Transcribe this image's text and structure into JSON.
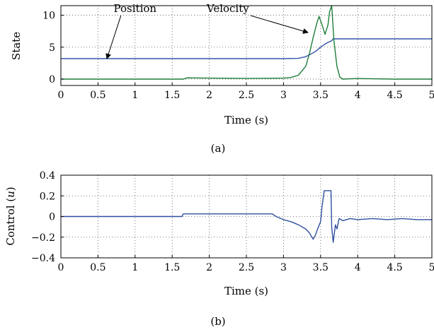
{
  "chart_data": [
    {
      "type": "line",
      "caption": "(a)",
      "xlabel": "Time (s)",
      "ylabel": "State",
      "xlim": [
        0,
        5
      ],
      "ylim": [
        -1,
        11.5
      ],
      "xticks": [
        "0",
        "0.5",
        "1",
        "1.5",
        "2",
        "2.5",
        "3",
        "3.5",
        "4",
        "4.5",
        "5"
      ],
      "yticks": [
        "0",
        "5",
        "10"
      ],
      "grid": true,
      "annotations": [
        {
          "text": "Position",
          "x": 1.0,
          "y": 10.5,
          "target_x": 0.62,
          "target_y": 3.2
        },
        {
          "text": "Velocity",
          "x": 2.25,
          "y": 10.5,
          "target_x": 3.33,
          "target_y": 7.3
        }
      ],
      "series": [
        {
          "color": "#3355aa",
          "x": [
            0,
            0.5,
            1,
            1.5,
            2,
            2.5,
            3,
            3.2,
            3.3,
            3.4,
            3.45,
            3.5,
            3.55,
            3.6,
            3.65,
            3.67,
            3.7,
            4,
            4.5,
            5
          ],
          "y": [
            3.2,
            3.2,
            3.2,
            3.2,
            3.2,
            3.2,
            3.2,
            3.25,
            3.5,
            4.1,
            4.5,
            5.0,
            5.4,
            5.75,
            6.0,
            6.3,
            6.3,
            6.3,
            6.3,
            6.3
          ]
        },
        {
          "color": "#1f7f3a",
          "x": [
            0,
            0.5,
            1,
            1.5,
            1.65,
            1.7,
            2,
            2.5,
            3,
            3.1,
            3.2,
            3.3,
            3.35,
            3.4,
            3.45,
            3.48,
            3.52,
            3.56,
            3.6,
            3.62,
            3.65,
            3.68,
            3.72,
            3.76,
            3.8,
            4,
            4.5,
            5
          ],
          "y": [
            0,
            0,
            0,
            0,
            0,
            0.2,
            0.15,
            0.1,
            0.15,
            0.25,
            0.6,
            2.0,
            4.0,
            6.5,
            8.8,
            9.8,
            8.5,
            7.0,
            8.5,
            10.5,
            11.5,
            6.0,
            2.0,
            0.3,
            0.0,
            0.1,
            0.0,
            0.0
          ]
        }
      ]
    },
    {
      "type": "line",
      "caption": "(b)",
      "xlabel": "Time (s)",
      "ylabel": "Control (u)",
      "xlim": [
        0,
        5
      ],
      "ylim": [
        -0.4,
        0.4
      ],
      "xticks": [
        "0",
        "0.5",
        "1",
        "1.5",
        "2",
        "2.5",
        "3",
        "3.5",
        "4",
        "4.5",
        "5"
      ],
      "yticks": [
        "0.4",
        "0.2",
        "0",
        "−0.2",
        "−0.4"
      ],
      "grid": true,
      "series": [
        {
          "color": "#2f4f9f",
          "x": [
            0,
            0.5,
            1,
            1.5,
            1.63,
            1.65,
            1.7,
            2,
            2.5,
            2.85,
            2.9,
            3.0,
            3.1,
            3.2,
            3.3,
            3.35,
            3.4,
            3.43,
            3.46,
            3.5,
            3.52,
            3.55,
            3.6,
            3.63,
            3.64,
            3.65,
            3.67,
            3.7,
            3.72,
            3.75,
            3.8,
            3.9,
            4,
            4.2,
            4.4,
            4.6,
            4.8,
            5
          ],
          "y": [
            0,
            0,
            0,
            0,
            0,
            0.025,
            0.025,
            0.025,
            0.025,
            0.025,
            0.0,
            -0.03,
            -0.05,
            -0.08,
            -0.12,
            -0.16,
            -0.22,
            -0.18,
            -0.12,
            -0.05,
            0.1,
            0.25,
            0.25,
            0.25,
            0.25,
            -0.1,
            -0.25,
            -0.08,
            -0.12,
            -0.02,
            -0.04,
            -0.02,
            -0.03,
            -0.02,
            -0.03,
            -0.02,
            -0.03,
            -0.03
          ]
        }
      ]
    }
  ]
}
